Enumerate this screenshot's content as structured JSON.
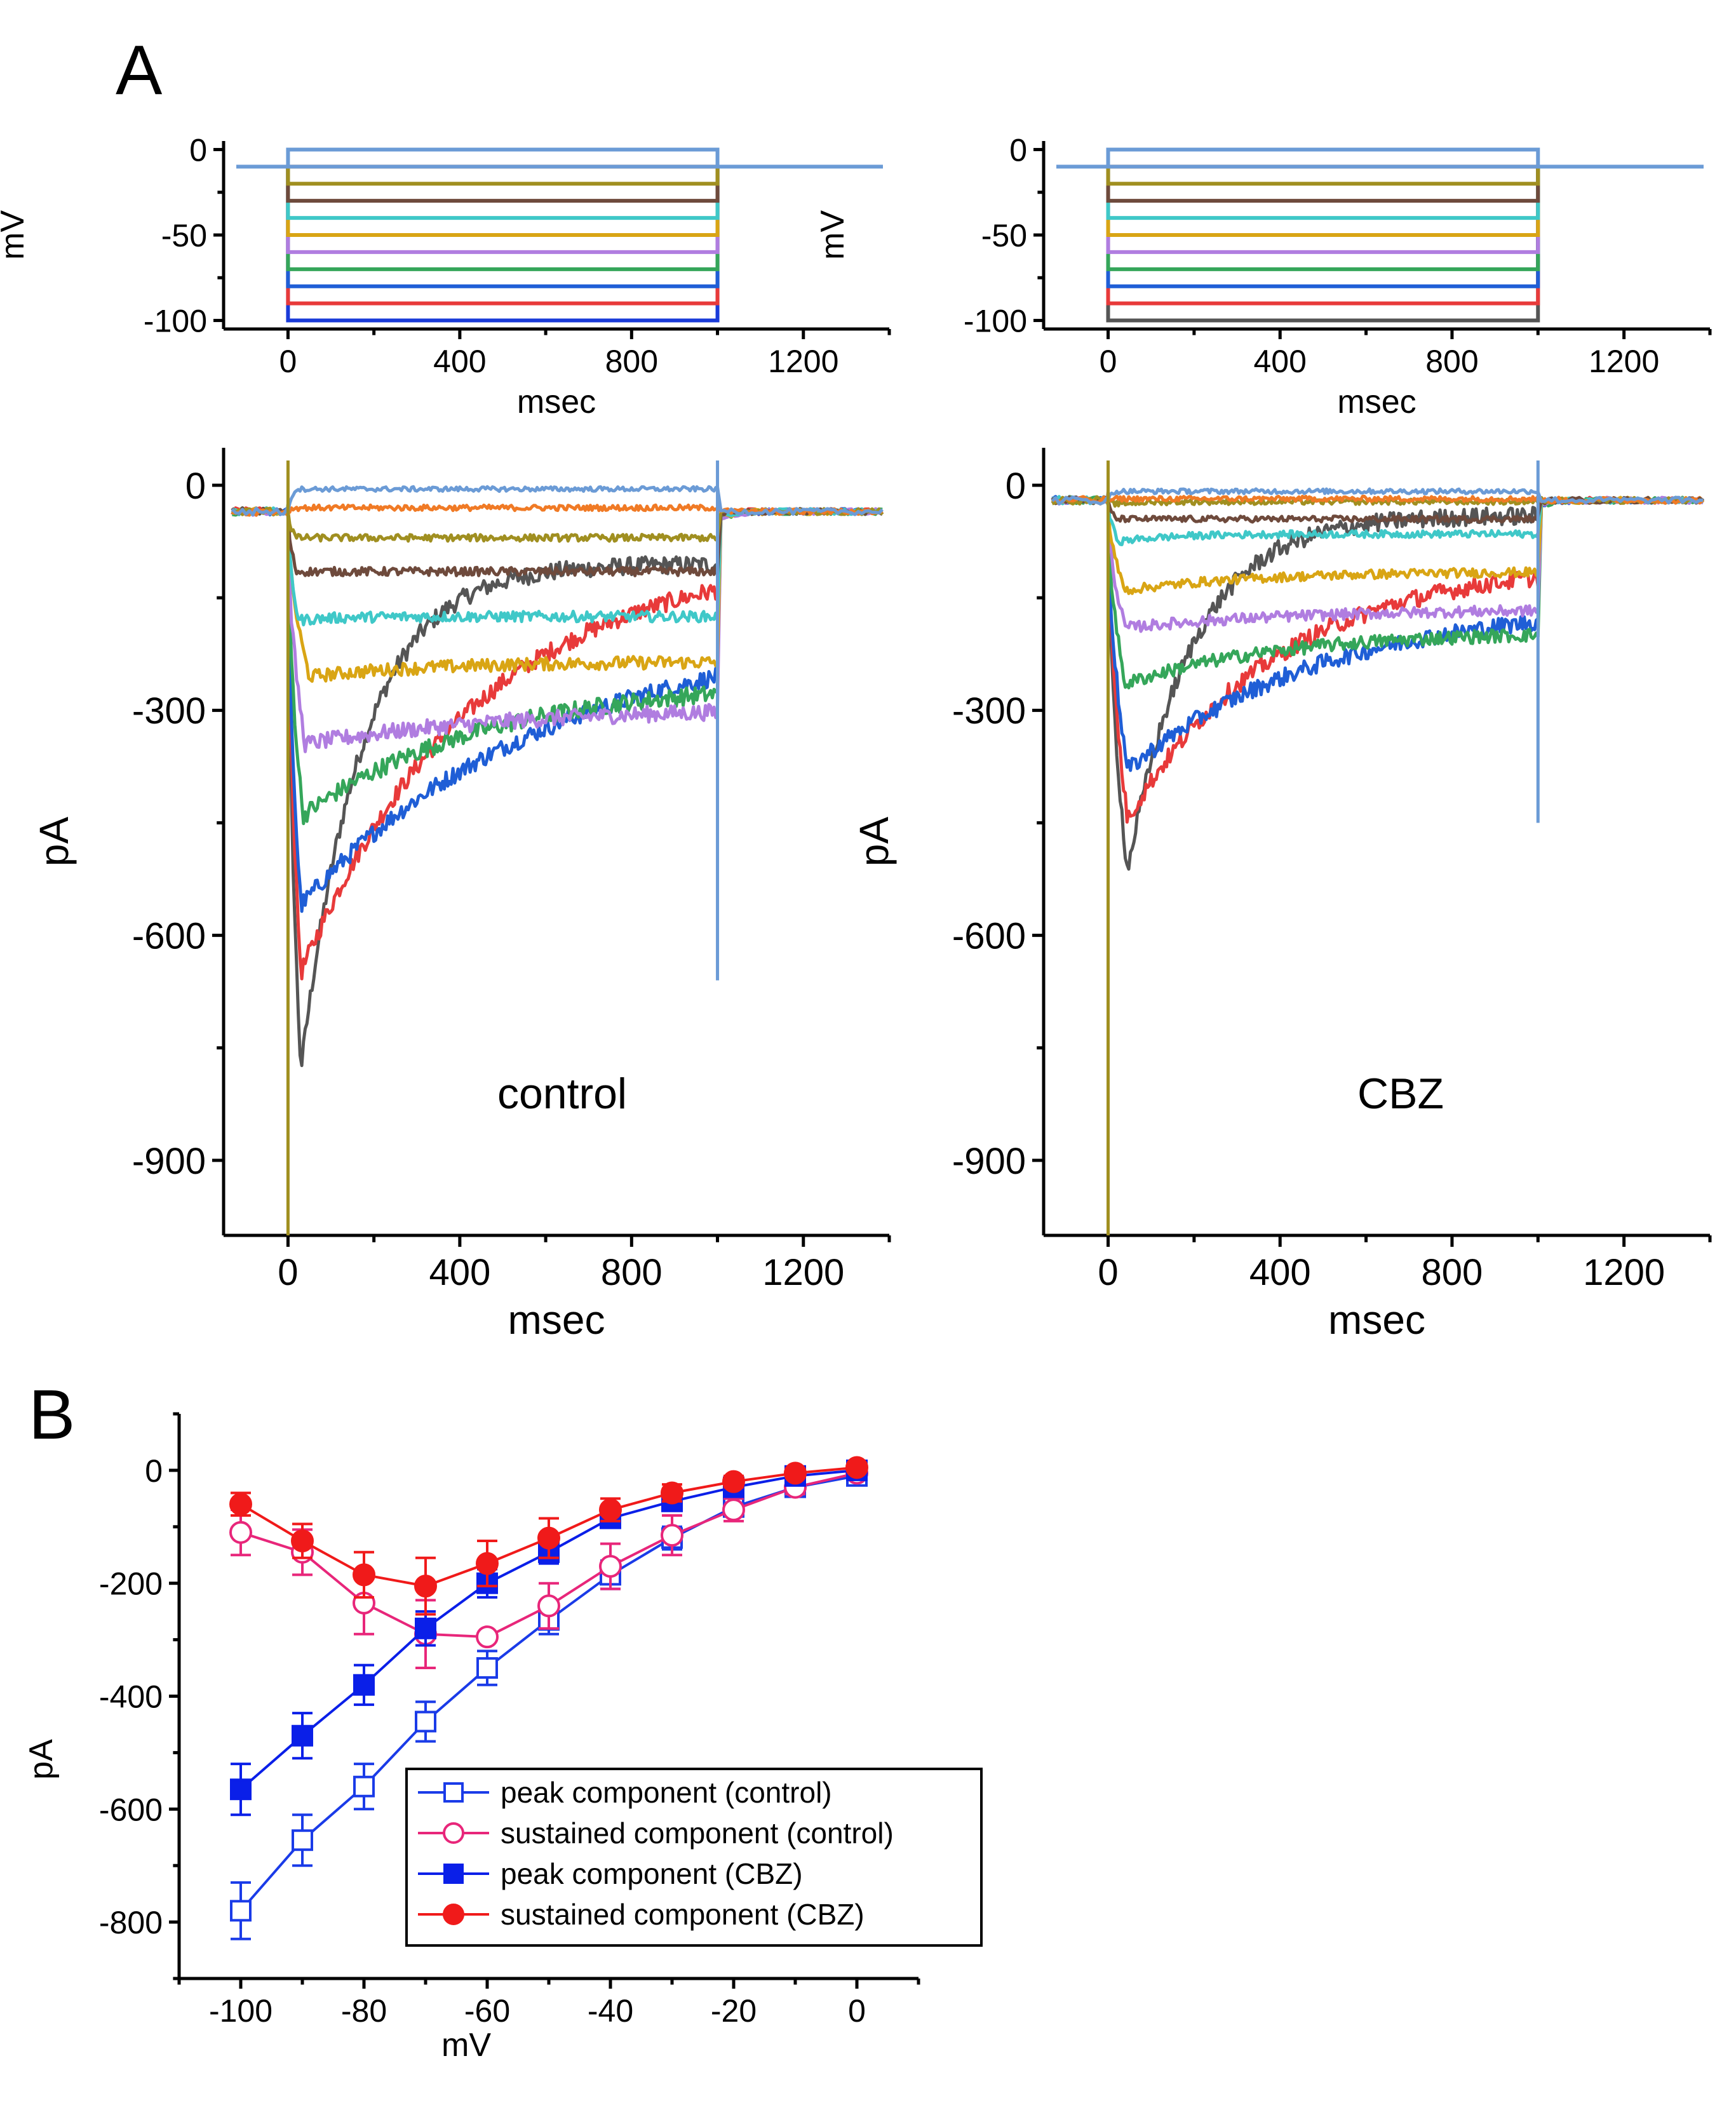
{
  "figure": {
    "panel_a_label": "A",
    "panel_b_label": "B"
  },
  "chart_data": [
    {
      "id": "protocol-control",
      "type": "line",
      "title": "",
      "xlabel": "msec",
      "ylabel": "mV",
      "xlim": [
        -150,
        1400
      ],
      "ylim": [
        -105,
        5
      ],
      "xticks": [
        0,
        400,
        800,
        1200
      ],
      "yticks": [
        0,
        -50,
        -100
      ],
      "holding_mV": -10,
      "step_start_ms": 0,
      "step_end_ms": 1000,
      "steps_mV": [
        0,
        -10,
        -20,
        -30,
        -40,
        -50,
        -60,
        -70,
        -80,
        -90,
        -100
      ],
      "colors": [
        "#6b9bd6",
        "#f07a25",
        "#a08f20",
        "#6e4a3c",
        "#3fc8c8",
        "#d9a514",
        "#b07de0",
        "#35a65a",
        "#1f5ed6",
        "#e83a3a",
        "#1a3bd9"
      ]
    },
    {
      "id": "protocol-cbz",
      "type": "line",
      "title": "",
      "xlabel": "msec",
      "ylabel": "mV",
      "xlim": [
        -150,
        1400
      ],
      "ylim": [
        -105,
        5
      ],
      "xticks": [
        0,
        400,
        800,
        1200
      ],
      "yticks": [
        0,
        -50,
        -100
      ],
      "holding_mV": -10,
      "step_start_ms": 0,
      "step_end_ms": 1000,
      "steps_mV": [
        0,
        -10,
        -20,
        -30,
        -40,
        -50,
        -60,
        -70,
        -80,
        -90,
        -100
      ],
      "colors": [
        "#6b9bd6",
        "#f07a25",
        "#a08f20",
        "#6e4a3c",
        "#3fc8c8",
        "#d9a514",
        "#b07de0",
        "#35a65a",
        "#1f5ed6",
        "#e83a3a",
        "#555555"
      ]
    },
    {
      "id": "currents-control",
      "type": "line",
      "title": "",
      "annotation": "control",
      "xlabel": "msec",
      "ylabel": "pA",
      "xlim": [
        -150,
        1400
      ],
      "ylim": [
        -1000,
        50
      ],
      "xticks": [
        0,
        400,
        800,
        1200
      ],
      "yticks": [
        0,
        -300,
        -600,
        -900
      ],
      "step_end_ms": 1000,
      "baseline_pA": -35,
      "traces": [
        {
          "step_mV": 0,
          "color": "#6b9bd6",
          "peak": -5,
          "sustained": -5,
          "t_peak": 20,
          "tau": 60
        },
        {
          "step_mV": -10,
          "color": "#f07a25",
          "peak": -30,
          "sustained": -30,
          "t_peak": 20,
          "tau": 60
        },
        {
          "step_mV": -20,
          "color": "#a08f20",
          "peak": -70,
          "sustained": -70,
          "t_peak": 20,
          "tau": 60
        },
        {
          "step_mV": -30,
          "color": "#6e4a3c",
          "peak": -115,
          "sustained": -115,
          "t_peak": 20,
          "tau": 60
        },
        {
          "step_mV": -40,
          "color": "#3fc8c8",
          "peak": -180,
          "sustained": -175,
          "t_peak": 25,
          "tau": 80
        },
        {
          "step_mV": -50,
          "color": "#d9a514",
          "peak": -255,
          "sustained": -235,
          "t_peak": 50,
          "tau": 300
        },
        {
          "step_mV": -60,
          "color": "#b07de0",
          "peak": -345,
          "sustained": -295,
          "t_peak": 40,
          "tau": 500
        },
        {
          "step_mV": -70,
          "color": "#35a65a",
          "peak": -440,
          "sustained": -260,
          "t_peak": 35,
          "tau": 420
        },
        {
          "step_mV": -80,
          "color": "#1f5ed6",
          "peak": -560,
          "sustained": -190,
          "t_peak": 30,
          "tau": 560
        },
        {
          "step_mV": -90,
          "color": "#e83a3a",
          "peak": -650,
          "sustained": -90,
          "t_peak": 30,
          "tau": 400
        },
        {
          "step_mV": -100,
          "color": "#555555",
          "peak": -780,
          "sustained": -105,
          "t_peak": 30,
          "tau": 140
        }
      ]
    },
    {
      "id": "currents-cbz",
      "type": "line",
      "title": "",
      "annotation": "CBZ",
      "xlabel": "msec",
      "ylabel": "pA",
      "xlim": [
        -150,
        1400
      ],
      "ylim": [
        -1000,
        50
      ],
      "xticks": [
        0,
        400,
        800,
        1200
      ],
      "yticks": [
        0,
        -300,
        -600,
        -900
      ],
      "step_end_ms": 1000,
      "baseline_pA": -20,
      "traces": [
        {
          "step_mV": 0,
          "color": "#6b9bd6",
          "peak": -8,
          "sustained": -8,
          "t_peak": 20,
          "tau": 60
        },
        {
          "step_mV": -10,
          "color": "#f07a25",
          "peak": -18,
          "sustained": -18,
          "t_peak": 20,
          "tau": 60
        },
        {
          "step_mV": -20,
          "color": "#a08f20",
          "peak": -25,
          "sustained": -22,
          "t_peak": 20,
          "tau": 60
        },
        {
          "step_mV": -30,
          "color": "#6e4a3c",
          "peak": -45,
          "sustained": -45,
          "t_peak": 20,
          "tau": 60
        },
        {
          "step_mV": -40,
          "color": "#3fc8c8",
          "peak": -75,
          "sustained": -65,
          "t_peak": 25,
          "tau": 120
        },
        {
          "step_mV": -50,
          "color": "#d9a514",
          "peak": -140,
          "sustained": -115,
          "t_peak": 40,
          "tau": 300
        },
        {
          "step_mV": -60,
          "color": "#b07de0",
          "peak": -190,
          "sustained": -165,
          "t_peak": 40,
          "tau": 400
        },
        {
          "step_mV": -70,
          "color": "#35a65a",
          "peak": -265,
          "sustained": -195,
          "t_peak": 40,
          "tau": 350
        },
        {
          "step_mV": -80,
          "color": "#1f5ed6",
          "peak": -380,
          "sustained": -155,
          "t_peak": 45,
          "tau": 450
        },
        {
          "step_mV": -90,
          "color": "#e83a3a",
          "peak": -445,
          "sustained": -100,
          "t_peak": 45,
          "tau": 350
        },
        {
          "step_mV": -100,
          "color": "#555555",
          "peak": -515,
          "sustained": -40,
          "t_peak": 45,
          "tau": 150
        }
      ]
    },
    {
      "id": "iv-curve",
      "type": "line",
      "title": "",
      "xlabel": "mV",
      "ylabel": "pA",
      "xlim": [
        -110,
        10
      ],
      "ylim": [
        -900,
        100
      ],
      "xticks": [
        -100,
        -80,
        -60,
        -40,
        -20,
        0
      ],
      "yticks": [
        0,
        -200,
        -400,
        -600,
        -800
      ],
      "legend_position": "bottom-right",
      "x": [
        -100,
        -90,
        -80,
        -70,
        -60,
        -50,
        -40,
        -30,
        -20,
        -10,
        0
      ],
      "series": [
        {
          "name": "peak component (control)",
          "color": "#1a3be8",
          "marker": "open-square",
          "values": [
            -780,
            -655,
            -560,
            -445,
            -350,
            -265,
            -185,
            -120,
            -65,
            -30,
            -10
          ],
          "errors": [
            50,
            45,
            40,
            35,
            30,
            25,
            25,
            20,
            15,
            10,
            8
          ]
        },
        {
          "name": "sustained component (control)",
          "color": "#e8267a",
          "marker": "open-circle",
          "values": [
            -110,
            -145,
            -235,
            -290,
            -295,
            -240,
            -170,
            -115,
            -70,
            -30,
            -5
          ],
          "errors": [
            40,
            40,
            55,
            60,
            0,
            40,
            40,
            35,
            20,
            12,
            8
          ]
        },
        {
          "name": "peak component (CBZ)",
          "color": "#0a1fe8",
          "marker": "filled-square",
          "values": [
            -565,
            -470,
            -380,
            -280,
            -200,
            -145,
            -85,
            -55,
            -30,
            -10,
            0
          ],
          "errors": [
            45,
            40,
            35,
            30,
            25,
            20,
            15,
            12,
            10,
            8,
            5
          ]
        },
        {
          "name": "sustained component (CBZ)",
          "color": "#f01a1a",
          "marker": "filled-circle",
          "values": [
            -60,
            -125,
            -185,
            -205,
            -165,
            -120,
            -70,
            -40,
            -20,
            -5,
            5
          ],
          "errors": [
            20,
            30,
            40,
            50,
            40,
            35,
            20,
            15,
            10,
            8,
            5
          ]
        }
      ]
    }
  ]
}
